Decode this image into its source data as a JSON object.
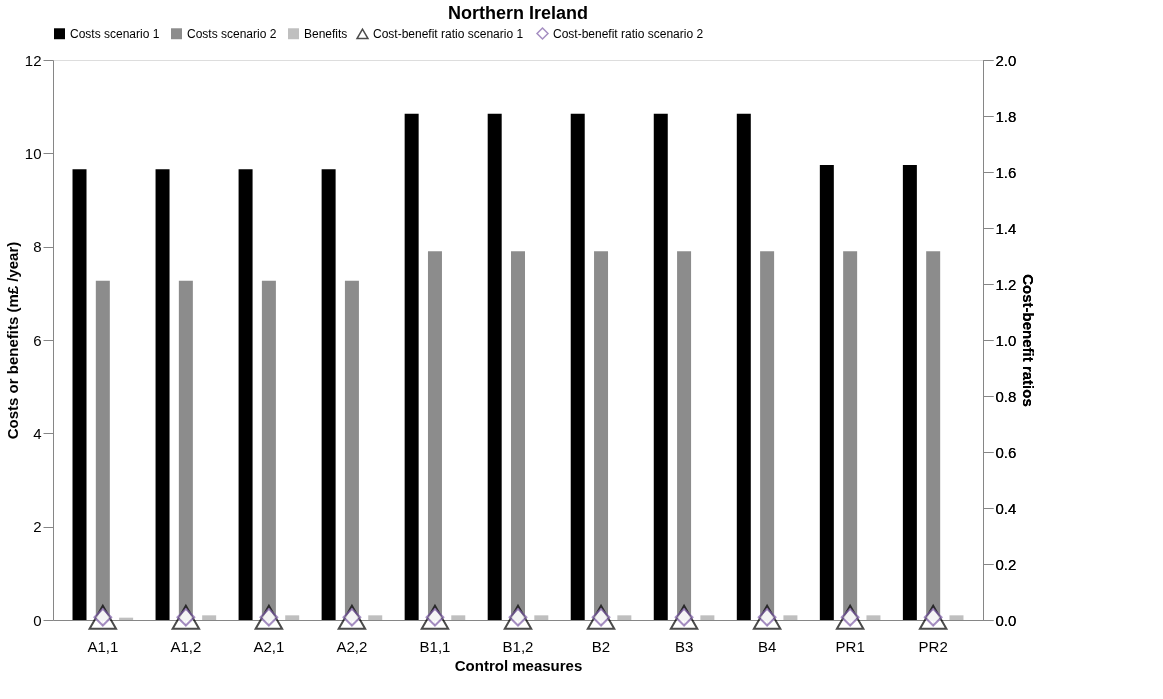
{
  "chart_data": {
    "type": "bar",
    "title": "Northern Ireland",
    "xlabel": "Control measures",
    "ylabel": "Costs or benefits (m£ /year)",
    "y2label": "Cost-benefit ratios",
    "categories": [
      "A1,1",
      "A1,2",
      "A2,1",
      "A2,2",
      "B1,1",
      "B1,2",
      "B2",
      "B3",
      "B4",
      "PR1",
      "PR2"
    ],
    "series": [
      {
        "name": "Costs scenario 1",
        "color": "#000000",
        "values": [
          9.66,
          9.66,
          9.66,
          9.66,
          10.85,
          10.85,
          10.85,
          10.85,
          10.85,
          9.75,
          9.75
        ]
      },
      {
        "name": "Costs scenario 2",
        "color": "#8c8c8c",
        "values": [
          7.27,
          7.27,
          7.27,
          7.27,
          7.9,
          7.9,
          7.9,
          7.9,
          7.9,
          7.9,
          7.9
        ]
      },
      {
        "name": "Benefits",
        "color": "#bfbfbf",
        "values": [
          0.05,
          0.1,
          0.1,
          0.1,
          0.1,
          0.1,
          0.1,
          0.1,
          0.1,
          0.1,
          0.1
        ]
      },
      {
        "name": "Cost-benefit ratio scenario 1",
        "type": "scatter",
        "axis": "y2",
        "marker": "triangle",
        "color": "#000000",
        "values": [
          0.01,
          0.01,
          0.01,
          0.01,
          0.01,
          0.01,
          0.01,
          0.01,
          0.01,
          0.01,
          0.01
        ]
      },
      {
        "name": "Cost-benefit ratio scenario 2",
        "type": "scatter",
        "axis": "y2",
        "marker": "diamond",
        "color": "#7f5fa8",
        "values": [
          0.01,
          0.01,
          0.01,
          0.01,
          0.01,
          0.01,
          0.01,
          0.01,
          0.01,
          0.01,
          0.01
        ]
      }
    ],
    "ylim": [
      0,
      12
    ],
    "yticks": [
      0,
      2,
      4,
      6,
      8,
      10,
      12
    ],
    "y2lim": [
      0,
      2.0
    ],
    "y2ticks": [
      {
        "value": 0,
        "label": "0.0"
      },
      {
        "value": 0.2,
        "label": "0.2"
      },
      {
        "value": 0.4,
        "label": "0.4"
      },
      {
        "value": 0.6,
        "label": "0.6"
      },
      {
        "value": 0.8,
        "label": "0.8"
      },
      {
        "value": 1.0,
        "label": "1.0"
      },
      {
        "value": 1.2,
        "label": "1.2"
      },
      {
        "value": 1.4,
        "label": "1.4"
      },
      {
        "value": 1.6,
        "label": "1.6"
      },
      {
        "value": 1.8,
        "label": "1.8"
      },
      {
        "value": 2.0,
        "label": "2.0"
      }
    ],
    "legend": "top",
    "grid": false
  }
}
